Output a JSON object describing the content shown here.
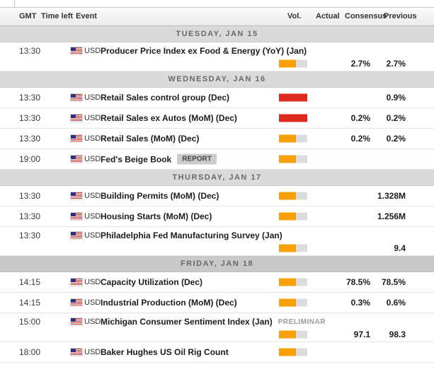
{
  "table": {
    "columns": [
      "GMT",
      "Time left",
      "Event",
      "Vol.",
      "Actual",
      "Consensus",
      "Previous"
    ]
  },
  "calendar": {
    "days": [
      {
        "label": "TUESDAY, JAN 15",
        "highlight": false,
        "events": [
          {
            "time": "13:30",
            "currency": "USD",
            "event": "Producer Price Index ex Food & Energy (YoY) (Jan)",
            "volatility": "medium",
            "actual": "",
            "consensus": "2.7%",
            "previous": "2.7%"
          }
        ]
      },
      {
        "label": "WEDNESDAY, JAN 16",
        "highlight": false,
        "events": [
          {
            "time": "13:30",
            "currency": "USD",
            "event": "Retail Sales control group (Dec)",
            "volatility": "high",
            "actual": "",
            "consensus": "",
            "previous": "0.9%"
          },
          {
            "time": "13:30",
            "currency": "USD",
            "event": "Retail Sales ex Autos (MoM) (Dec)",
            "volatility": "high",
            "actual": "",
            "consensus": "0.2%",
            "previous": "0.2%"
          },
          {
            "time": "13:30",
            "currency": "USD",
            "event": "Retail Sales (MoM) (Dec)",
            "volatility": "medium",
            "actual": "",
            "consensus": "0.2%",
            "previous": "0.2%"
          },
          {
            "time": "19:00",
            "currency": "USD",
            "event": "Fed's Beige Book",
            "badge": {
              "text": "REPORT",
              "style": "filled"
            },
            "volatility": "medium",
            "actual": "",
            "consensus": "",
            "previous": ""
          }
        ]
      },
      {
        "label": "THURSDAY, JAN 17",
        "highlight": false,
        "events": [
          {
            "time": "13:30",
            "currency": "USD",
            "event": "Building Permits (MoM) (Dec)",
            "volatility": "medium",
            "actual": "",
            "consensus": "",
            "previous": "1.328M"
          },
          {
            "time": "13:30",
            "currency": "USD",
            "event": "Housing Starts (MoM) (Dec)",
            "volatility": "medium",
            "actual": "",
            "consensus": "",
            "previous": "1.256M"
          },
          {
            "time": "13:30",
            "currency": "USD",
            "event": "Philadelphia Fed Manufacturing Survey (Jan)",
            "volatility": "medium",
            "actual": "",
            "consensus": "",
            "previous": "9.4"
          }
        ]
      },
      {
        "label": "FRIDAY, JAN 18",
        "highlight": true,
        "events": [
          {
            "time": "14:15",
            "currency": "USD",
            "event": "Capacity Utilization (Dec)",
            "volatility": "medium",
            "actual": "",
            "consensus": "78.5%",
            "previous": "78.5%"
          },
          {
            "time": "14:15",
            "currency": "USD",
            "event": "Industrial Production (MoM) (Dec)",
            "volatility": "medium",
            "actual": "",
            "consensus": "0.3%",
            "previous": "0.6%"
          },
          {
            "time": "15:00",
            "currency": "USD",
            "event": "Michigan Consumer Sentiment Index (Jan)",
            "badge": {
              "text": "PRELIMINAR",
              "style": "plain"
            },
            "volatility": "medium",
            "actual": "",
            "consensus": "97.1",
            "previous": "98.3"
          },
          {
            "time": "18:00",
            "currency": "USD",
            "event": "Baker Hughes US Oil Rig Count",
            "volatility": "medium",
            "actual": "",
            "consensus": "",
            "previous": ""
          }
        ]
      }
    ]
  },
  "colors": {
    "volatility_medium": "#f7a10a",
    "volatility_high": "#dc2a1f",
    "bar_track": "#dcdcdc",
    "day_header_bg": "#dadada",
    "day_header_current_bg": "#c9c9c9"
  }
}
